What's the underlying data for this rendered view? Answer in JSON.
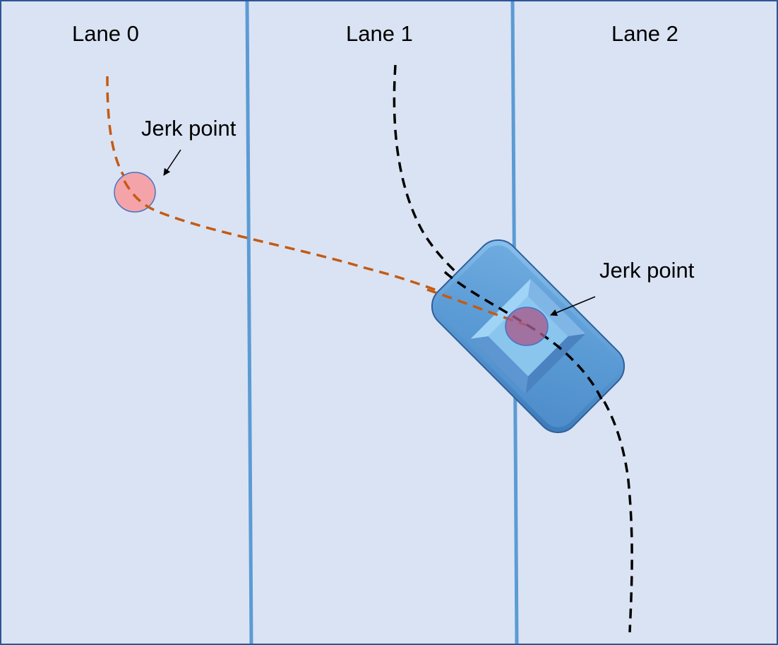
{
  "lanes": [
    {
      "label": "Lane 0"
    },
    {
      "label": "Lane 1"
    },
    {
      "label": "Lane 2"
    }
  ],
  "annotations": [
    {
      "label": "Jerk point"
    },
    {
      "label": "Jerk point"
    }
  ],
  "colors": {
    "background": "#dae3f3",
    "border": "#2f5597",
    "lane_line": "#5b9bd5",
    "orange_path": "#c55a11",
    "black_path": "#000000",
    "jerk_marker_fill": "#f4a4a8",
    "jerk_marker_stroke": "#4472c4",
    "vehicle_body": "#5b9bd5",
    "vehicle_roof": "#8fcaf0"
  },
  "icons": {
    "vehicle": "car-top-view-icon",
    "marker": "circle-marker-icon",
    "arrow": "pointer-arrow-icon"
  }
}
